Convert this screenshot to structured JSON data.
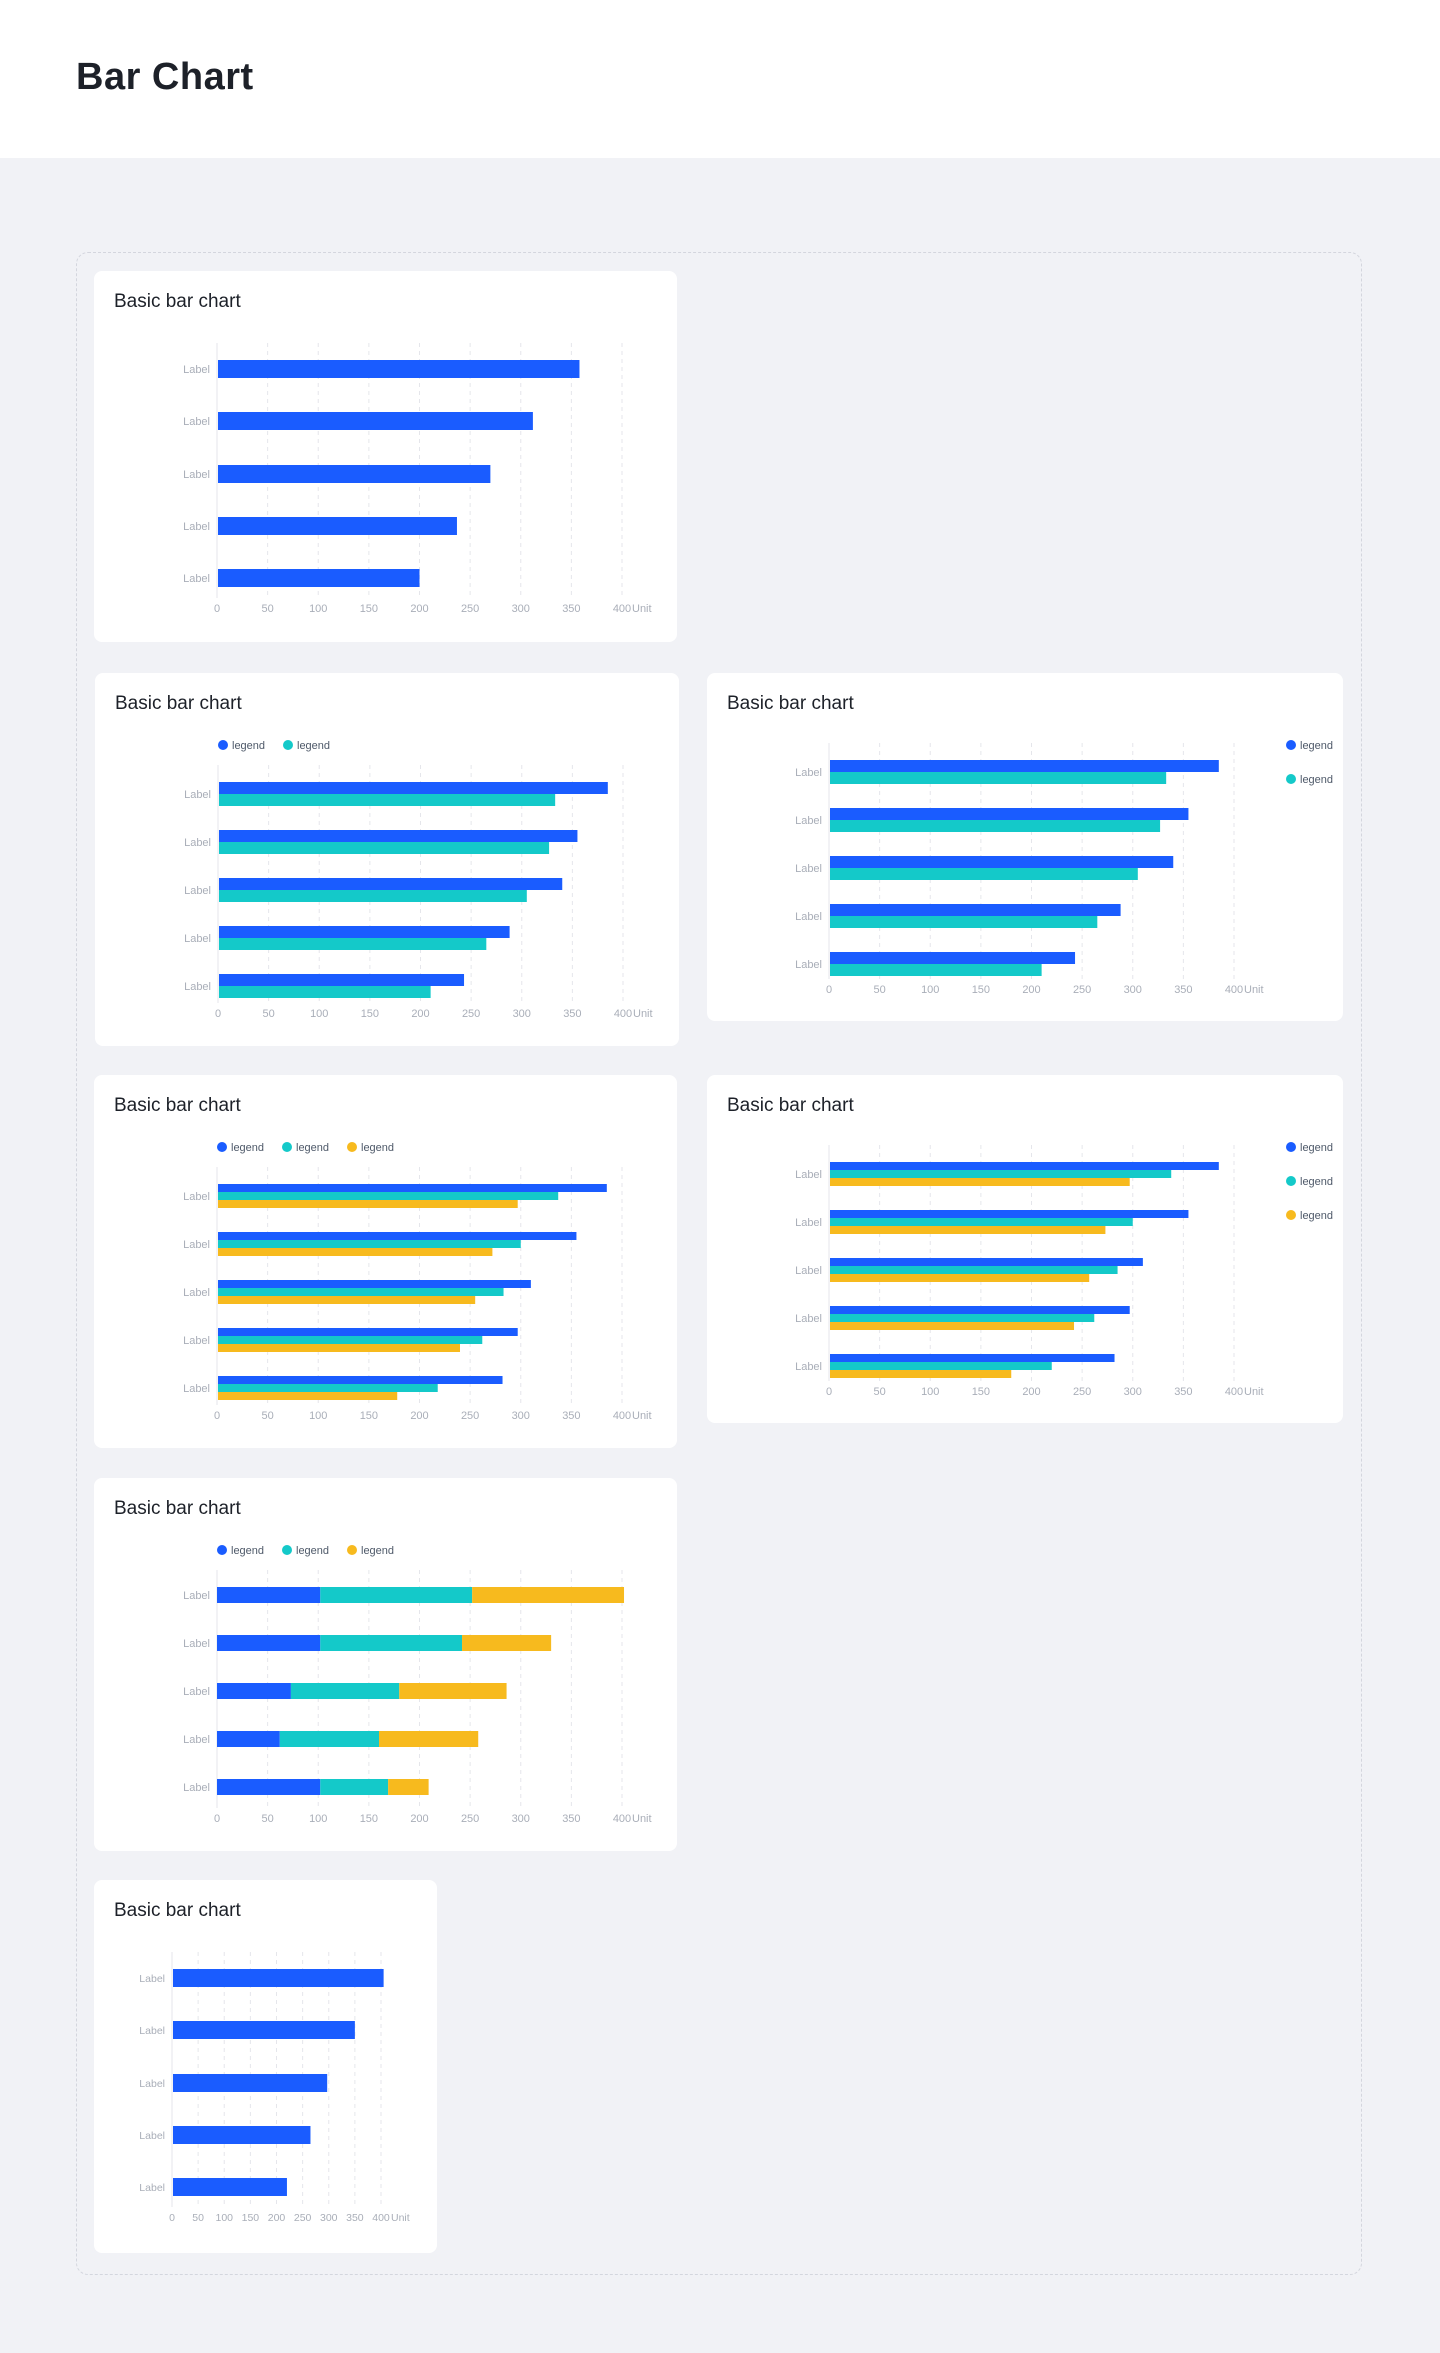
{
  "page": {
    "title": "Bar  Chart"
  },
  "colors": {
    "blue": "#1a5cff",
    "teal": "#14c9c9",
    "yellow": "#f7ba1e",
    "axis_text": "#a9aeb8",
    "grid": "#e5e6eb"
  },
  "chart_data": [
    {
      "type": "bar",
      "orientation": "horizontal",
      "title": "Basic bar chart",
      "categories": [
        "Label",
        "Label",
        "Label",
        "Label",
        "Label"
      ],
      "x_ticks": [
        "0",
        "50",
        "100",
        "150",
        "200",
        "250",
        "300",
        "350",
        "400"
      ],
      "unit": "Unit",
      "xlim": [
        0,
        400
      ],
      "grid": true,
      "legend_position": "none",
      "series": [
        {
          "values": [
            358,
            312,
            270,
            237,
            200
          ]
        }
      ]
    },
    {
      "type": "bar",
      "orientation": "horizontal",
      "title": "Basic bar chart",
      "categories": [
        "Label",
        "Label",
        "Label",
        "Label",
        "Label"
      ],
      "x_ticks": [
        "0",
        "50",
        "100",
        "150",
        "200",
        "250",
        "300",
        "350",
        "400"
      ],
      "unit": "Unit",
      "xlim": [
        0,
        400
      ],
      "grid": true,
      "legend_position": "top-left",
      "series": [
        {
          "name": "legend",
          "values": [
            385,
            355,
            340,
            288,
            243
          ]
        },
        {
          "name": "legend",
          "values": [
            333,
            327,
            305,
            265,
            210
          ]
        }
      ]
    },
    {
      "type": "bar",
      "orientation": "horizontal",
      "title": "Basic bar chart",
      "categories": [
        "Label",
        "Label",
        "Label",
        "Label",
        "Label"
      ],
      "x_ticks": [
        "0",
        "50",
        "100",
        "150",
        "200",
        "250",
        "300",
        "350",
        "400"
      ],
      "unit": "Unit",
      "xlim": [
        0,
        400
      ],
      "grid": true,
      "legend_position": "right",
      "series": [
        {
          "name": "legend",
          "values": [
            385,
            355,
            340,
            288,
            243
          ]
        },
        {
          "name": "legend",
          "values": [
            333,
            327,
            305,
            265,
            210
          ]
        }
      ]
    },
    {
      "type": "bar",
      "orientation": "horizontal",
      "title": "Basic bar chart",
      "categories": [
        "Label",
        "Label",
        "Label",
        "Label",
        "Label"
      ],
      "x_ticks": [
        "0",
        "50",
        "100",
        "150",
        "200",
        "250",
        "300",
        "350",
        "400"
      ],
      "unit": "Unit",
      "xlim": [
        0,
        400
      ],
      "grid": true,
      "legend_position": "top-left",
      "series": [
        {
          "name": "legend",
          "values": [
            385,
            355,
            310,
            297,
            282
          ]
        },
        {
          "name": "legend",
          "values": [
            337,
            300,
            283,
            262,
            218
          ]
        },
        {
          "name": "legend",
          "values": [
            297,
            272,
            255,
            240,
            178
          ]
        }
      ]
    },
    {
      "type": "bar",
      "orientation": "horizontal",
      "title": "Basic bar chart",
      "categories": [
        "Label",
        "Label",
        "Label",
        "Label",
        "Label"
      ],
      "x_ticks": [
        "0",
        "50",
        "100",
        "150",
        "200",
        "250",
        "300",
        "350",
        "400"
      ],
      "unit": "Unit",
      "xlim": [
        0,
        400
      ],
      "grid": true,
      "legend_position": "right",
      "series": [
        {
          "name": "legend",
          "values": [
            385,
            355,
            310,
            297,
            282
          ]
        },
        {
          "name": "legend",
          "values": [
            338,
            300,
            285,
            262,
            220
          ]
        },
        {
          "name": "legend",
          "values": [
            297,
            273,
            257,
            242,
            180
          ]
        }
      ]
    },
    {
      "type": "bar",
      "stacked": true,
      "orientation": "horizontal",
      "title": "Basic bar chart",
      "categories": [
        "Label",
        "Label",
        "Label",
        "Label",
        "Label"
      ],
      "x_ticks": [
        "0",
        "50",
        "100",
        "150",
        "200",
        "250",
        "300",
        "350",
        "400"
      ],
      "unit": "Unit",
      "xlim": [
        0,
        400
      ],
      "grid": true,
      "legend_position": "top-left",
      "series": [
        {
          "name": "legend",
          "values": [
            102,
            102,
            73,
            62,
            102
          ]
        },
        {
          "name": "legend",
          "values": [
            150,
            140,
            107,
            98,
            67
          ]
        },
        {
          "name": "legend",
          "values": [
            150,
            88,
            106,
            98,
            40
          ]
        }
      ]
    },
    {
      "type": "bar",
      "orientation": "horizontal",
      "title": "Basic bar chart",
      "categories": [
        "Label",
        "Label",
        "Label",
        "Label",
        "Label"
      ],
      "x_ticks": [
        "0",
        "50",
        "100",
        "150",
        "200",
        "250",
        "300",
        "350",
        "400"
      ],
      "unit": "Unit",
      "xlim": [
        0,
        400
      ],
      "grid": true,
      "legend_position": "none",
      "series": [
        {
          "values": [
            405,
            350,
            297,
            265,
            220
          ]
        }
      ]
    }
  ]
}
